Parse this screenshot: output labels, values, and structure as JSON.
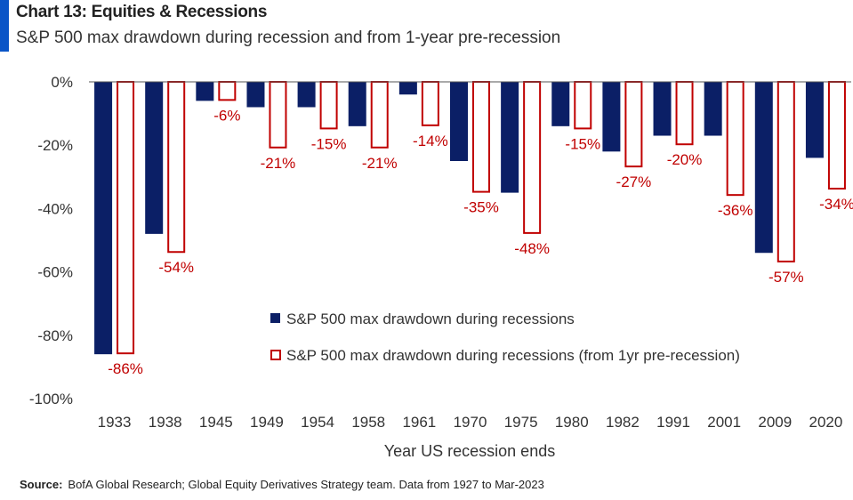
{
  "header": {
    "title": "Chart 13: Equities & Recessions",
    "subtitle": "S&P 500 max drawdown during recession and from 1-year pre-recession"
  },
  "footer": {
    "source_label": "Source:",
    "source_text": "BofA Global Research; Global Equity Derivatives Strategy team. Data from 1927 to Mar-2023"
  },
  "colors": {
    "accent": "#0a55c7",
    "navy": "#0b1f66",
    "red": "#c00000",
    "axis": "#555555"
  },
  "chart_data": {
    "type": "bar",
    "xlabel": "Year US recession ends",
    "ylabel": "",
    "ylim": [
      -100,
      0
    ],
    "yticks": [
      0,
      -20,
      -40,
      -60,
      -80,
      -100
    ],
    "ytick_labels": [
      "0%",
      "-20%",
      "-40%",
      "-60%",
      "-80%",
      "-100%"
    ],
    "categories": [
      "1933",
      "1938",
      "1945",
      "1949",
      "1954",
      "1958",
      "1961",
      "1970",
      "1975",
      "1980",
      "1982",
      "1991",
      "2001",
      "2009",
      "2020"
    ],
    "series": [
      {
        "name": "S&P 500 max drawdown during recessions",
        "values": [
          -86,
          -48,
          -6,
          -8,
          -8,
          -14,
          -4,
          -25,
          -35,
          -14,
          -22,
          -17,
          -17,
          -54,
          -24
        ]
      },
      {
        "name": "S&P 500 max drawdown during recessions (from 1yr pre-recession)",
        "values": [
          -86,
          -54,
          -6,
          -21,
          -15,
          -21,
          -14,
          -35,
          -48,
          -15,
          -27,
          -20,
          -36,
          -57,
          -34
        ],
        "labels": [
          "-86%",
          "-54%",
          "-6%",
          "-21%",
          "-15%",
          "-21%",
          "-14%",
          "-35%",
          "-48%",
          "-15%",
          "-27%",
          "-20%",
          "-36%",
          "-57%",
          "-34%"
        ]
      }
    ],
    "legend_position": "center",
    "grid": false
  }
}
